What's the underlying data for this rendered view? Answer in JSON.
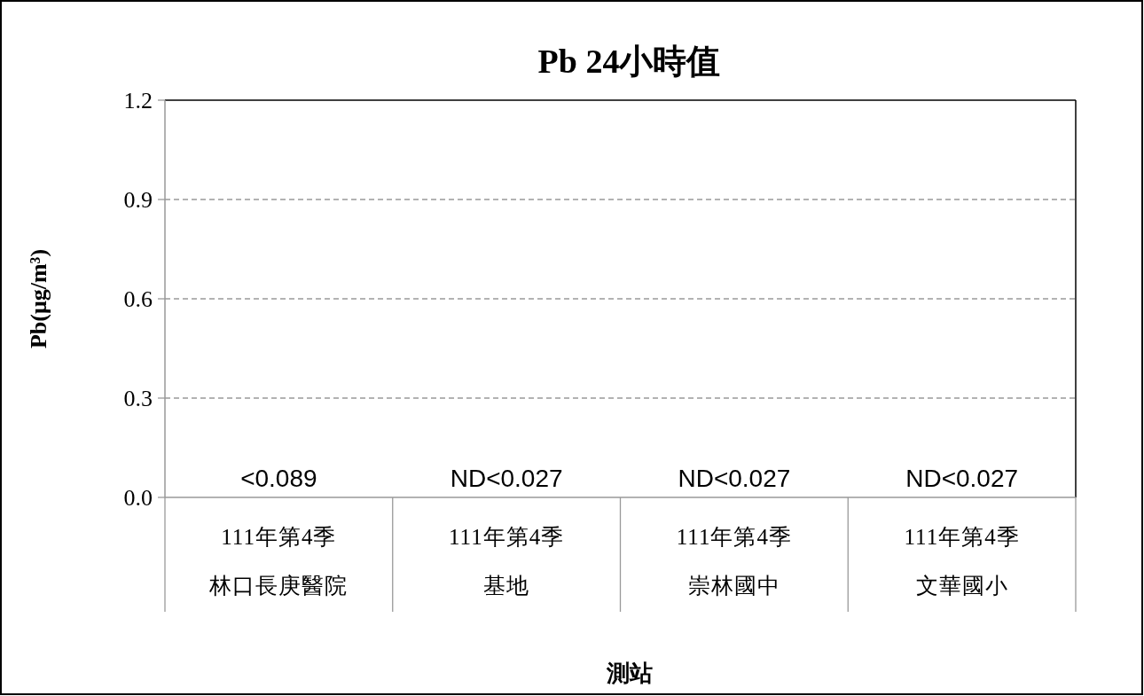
{
  "chart_data": {
    "type": "bar",
    "title": "Pb 24小時值",
    "ylabel": "Pb(μg/m³)",
    "xlabel": "測站",
    "categories": [
      "111年第4季林口長庚醫院",
      "111年第4季基地",
      "111年第4季崇林國中",
      "111年第4季文華國小"
    ],
    "values": [
      null,
      null,
      null,
      null
    ],
    "value_labels": [
      "<0.089",
      "ND<0.027",
      "ND<0.027",
      "ND<0.027"
    ],
    "ylim": [
      0,
      1.2
    ],
    "yticks": [
      {
        "value": 0,
        "label": "0.0"
      },
      0.3,
      0.6,
      0.9,
      1.2
    ],
    "grid": "y"
  }
}
